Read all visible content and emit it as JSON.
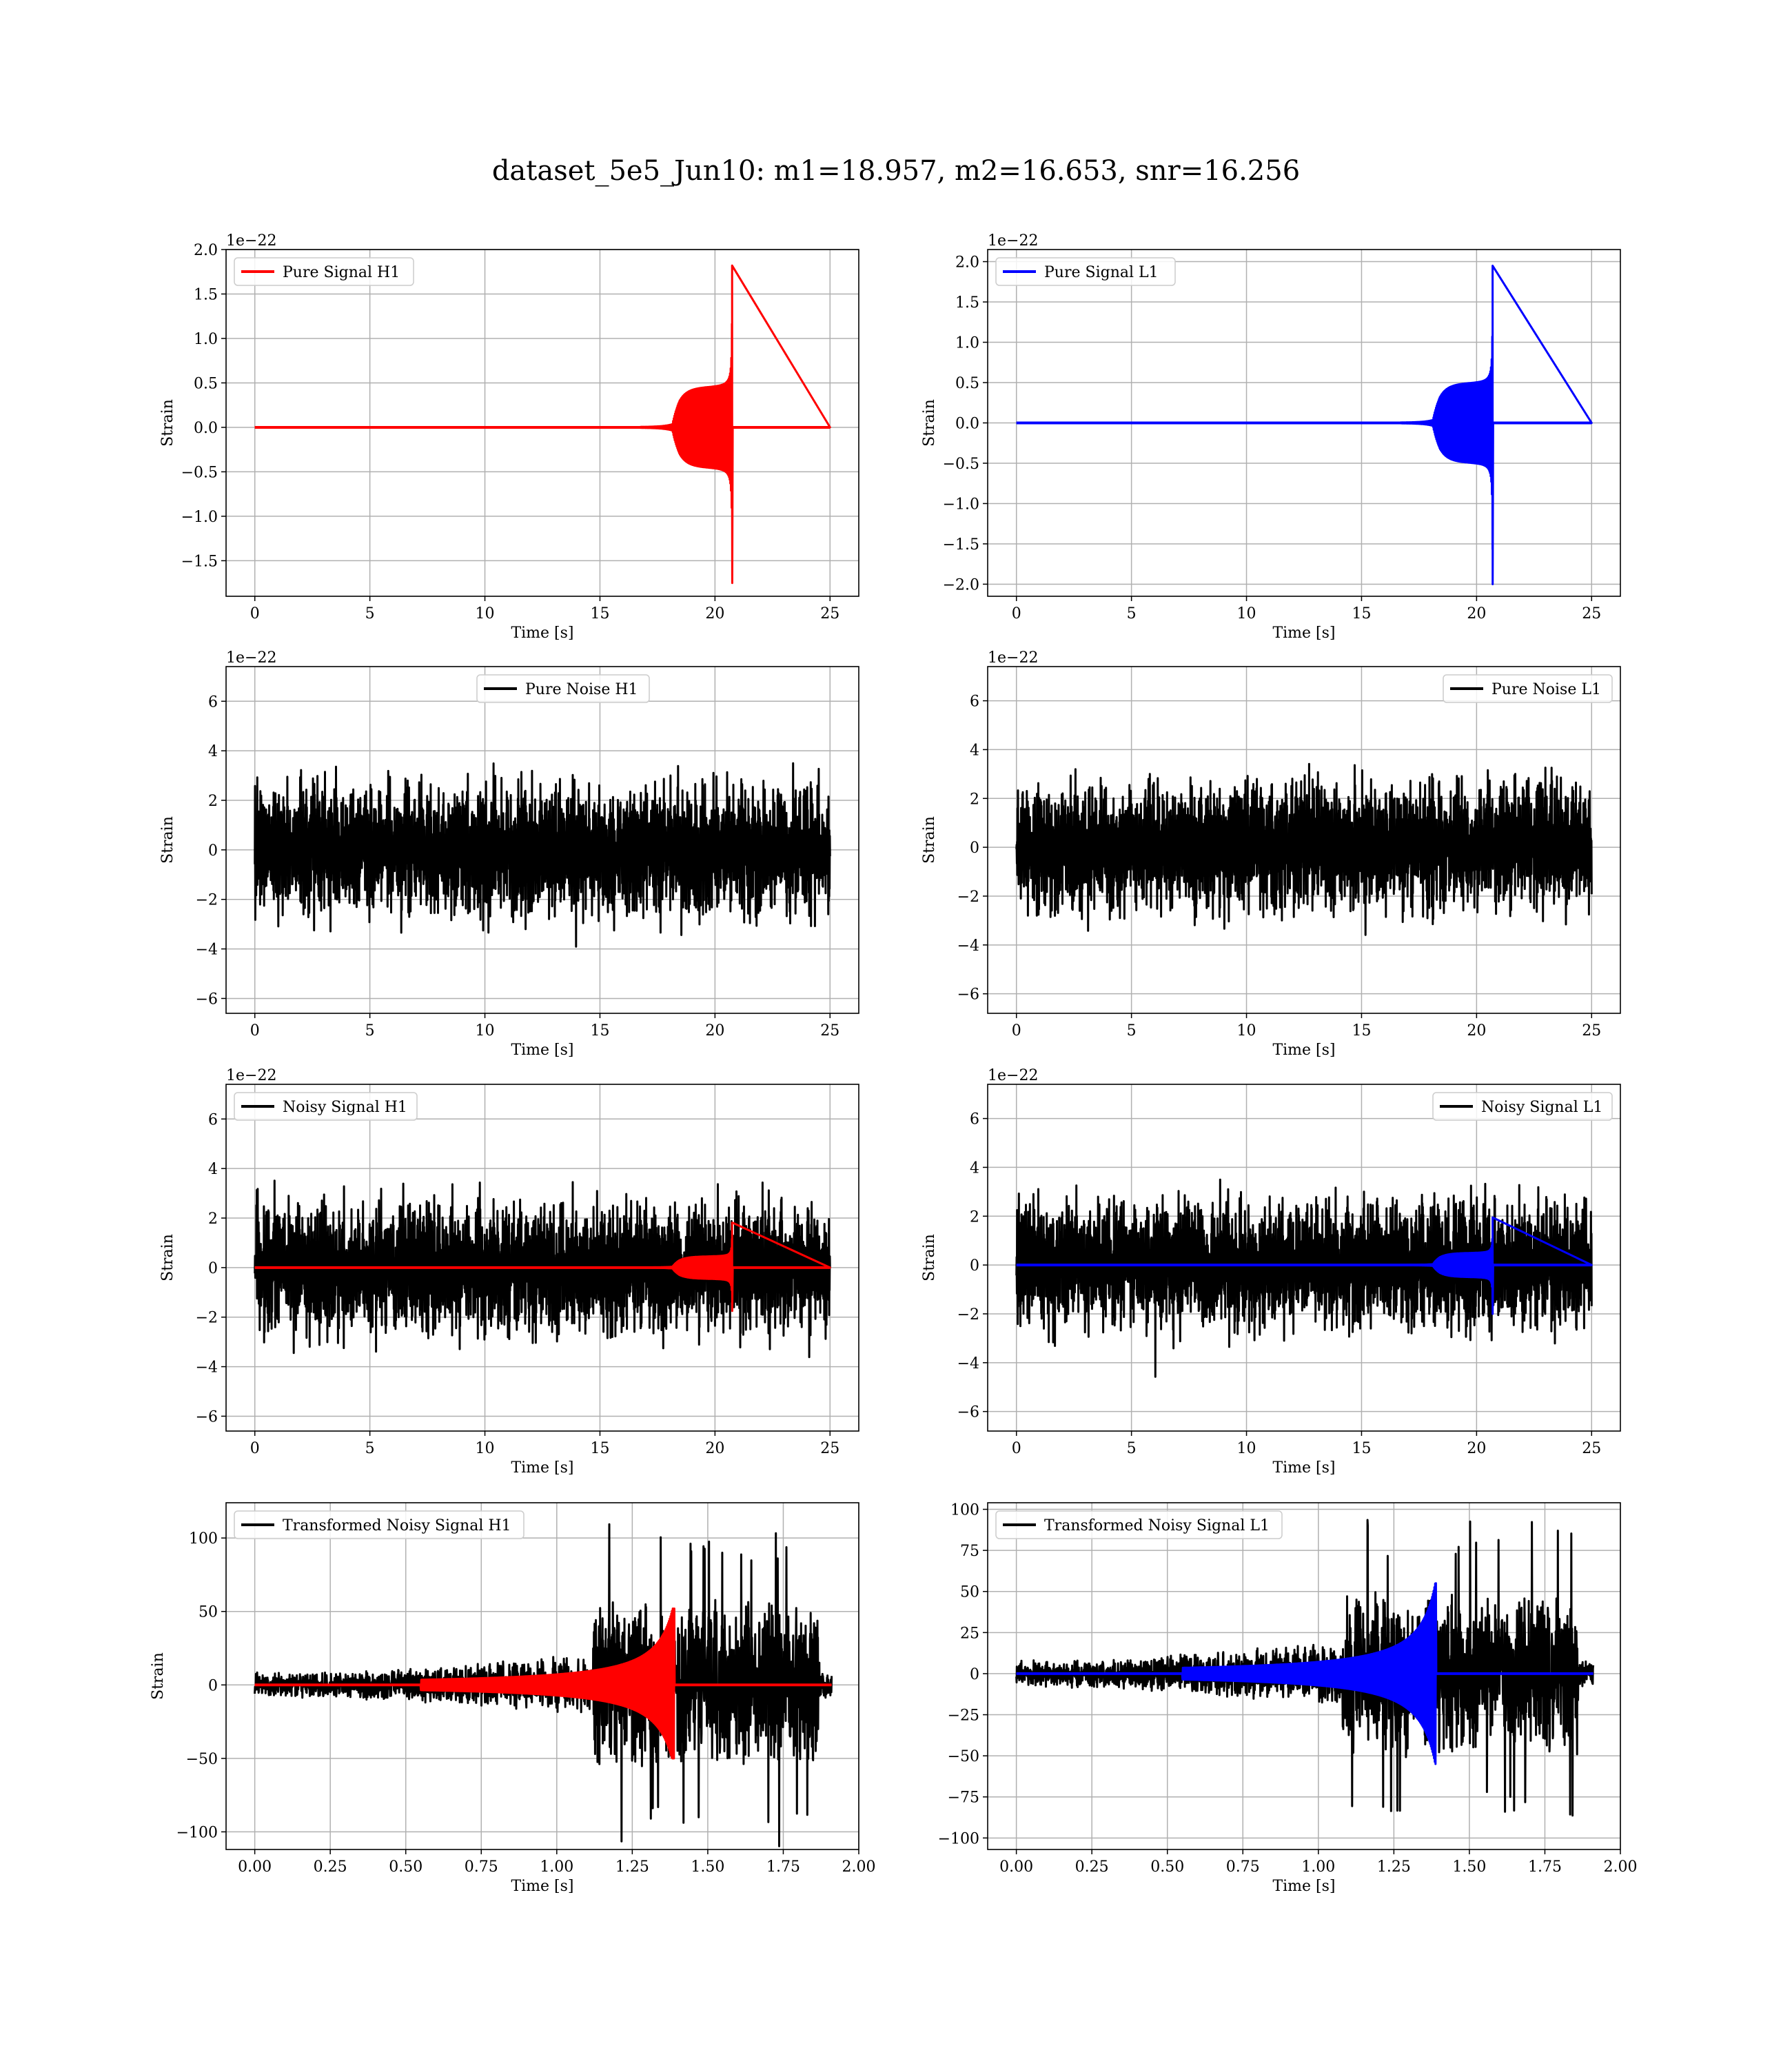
{
  "figure": {
    "title": "dataset_5e5_Jun10: m1=18.957, m2=16.653, snr=16.256"
  },
  "chart_data": [
    {
      "type": "line",
      "id": "p1",
      "xlabel": "Time [s]",
      "ylabel": "Strain",
      "offset_text": "1e−22",
      "xlim": [
        -1.25,
        26.25
      ],
      "ylim": [
        -1.9,
        2.0
      ],
      "xticks": [
        0,
        5,
        10,
        15,
        20,
        25
      ],
      "xtick_labels": [
        "0",
        "5",
        "10",
        "15",
        "20",
        "25"
      ],
      "yticks": [
        -1.5,
        -1.0,
        -0.5,
        0.0,
        0.5,
        1.0,
        1.5,
        2.0
      ],
      "ytick_labels": [
        "−1.5",
        "−1.0",
        "−0.5",
        "0.0",
        "0.5",
        "1.0",
        "1.5",
        "2.0"
      ],
      "legend_position": "upper-left",
      "grid": true,
      "series": [
        {
          "name": "Pure Signal H1",
          "color": "#ff0000",
          "kind": "chirp",
          "t_start": 0,
          "t_end": 25,
          "t_merger": 20.75,
          "envelope_peak": 1.82,
          "envelope_min_peak": -1.75,
          "envelope_shoulder": 0.38
        }
      ]
    },
    {
      "type": "line",
      "id": "p2",
      "xlabel": "Time [s]",
      "ylabel": "Strain",
      "offset_text": "1e−22",
      "xlim": [
        -1.25,
        26.25
      ],
      "ylim": [
        -2.15,
        2.15
      ],
      "xticks": [
        0,
        5,
        10,
        15,
        20,
        25
      ],
      "xtick_labels": [
        "0",
        "5",
        "10",
        "15",
        "20",
        "25"
      ],
      "yticks": [
        -2.0,
        -1.5,
        -1.0,
        -0.5,
        0.0,
        0.5,
        1.0,
        1.5,
        2.0
      ],
      "ytick_labels": [
        "−2.0",
        "−1.5",
        "−1.0",
        "−0.5",
        "0.0",
        "0.5",
        "1.0",
        "1.5",
        "2.0"
      ],
      "legend_position": "upper-left",
      "grid": true,
      "series": [
        {
          "name": "Pure Signal L1",
          "color": "#0000ff",
          "kind": "chirp",
          "t_start": 0,
          "t_end": 25,
          "t_merger": 20.7,
          "envelope_peak": 1.95,
          "envelope_min_peak": -2.0,
          "envelope_shoulder": 0.42
        }
      ]
    },
    {
      "type": "line",
      "id": "p3",
      "xlabel": "Time [s]",
      "ylabel": "Strain",
      "offset_text": "1e−22",
      "xlim": [
        -1.25,
        26.25
      ],
      "ylim": [
        -6.6,
        7.4
      ],
      "xticks": [
        0,
        5,
        10,
        15,
        20,
        25
      ],
      "xtick_labels": [
        "0",
        "5",
        "10",
        "15",
        "20",
        "25"
      ],
      "yticks": [
        -6,
        -4,
        -2,
        0,
        2,
        4,
        6
      ],
      "ytick_labels": [
        "−6",
        "−4",
        "−2",
        "0",
        "2",
        "4",
        "6"
      ],
      "legend_position": "upper-center",
      "grid": true,
      "series": [
        {
          "name": "Pure Noise H1",
          "color": "#000000",
          "kind": "noise",
          "t_start": 0,
          "t_end": 25,
          "amplitude": 6.8,
          "seed": 11
        }
      ]
    },
    {
      "type": "line",
      "id": "p4",
      "xlabel": "Time [s]",
      "ylabel": "Strain",
      "offset_text": "1e−22",
      "xlim": [
        -1.25,
        26.25
      ],
      "ylim": [
        -6.8,
        7.4
      ],
      "xticks": [
        0,
        5,
        10,
        15,
        20,
        25
      ],
      "xtick_labels": [
        "0",
        "5",
        "10",
        "15",
        "20",
        "25"
      ],
      "yticks": [
        -6,
        -4,
        -2,
        0,
        2,
        4,
        6
      ],
      "ytick_labels": [
        "−6",
        "−4",
        "−2",
        "0",
        "2",
        "4",
        "6"
      ],
      "legend_position": "upper-right",
      "grid": true,
      "series": [
        {
          "name": "Pure Noise L1",
          "color": "#000000",
          "kind": "noise",
          "t_start": 0,
          "t_end": 25,
          "amplitude": 6.9,
          "seed": 23
        }
      ]
    },
    {
      "type": "line",
      "id": "p5",
      "xlabel": "Time [s]",
      "ylabel": "Strain",
      "offset_text": "1e−22",
      "xlim": [
        -1.25,
        26.25
      ],
      "ylim": [
        -6.6,
        7.4
      ],
      "xticks": [
        0,
        5,
        10,
        15,
        20,
        25
      ],
      "xtick_labels": [
        "0",
        "5",
        "10",
        "15",
        "20",
        "25"
      ],
      "yticks": [
        -6,
        -4,
        -2,
        0,
        2,
        4,
        6
      ],
      "ytick_labels": [
        "−6",
        "−4",
        "−2",
        "0",
        "2",
        "4",
        "6"
      ],
      "legend_position": "upper-left",
      "grid": true,
      "series": [
        {
          "name": "Noisy Signal H1",
          "color": "#000000",
          "kind": "noise",
          "t_start": 0,
          "t_end": 25,
          "amplitude": 7.0,
          "seed": 11
        },
        {
          "color": "#ff0000",
          "kind": "chirp",
          "t_start": 0,
          "t_end": 25,
          "t_merger": 20.75,
          "envelope_peak": 1.82,
          "envelope_min_peak": -1.75,
          "envelope_shoulder": 0.38
        }
      ]
    },
    {
      "type": "line",
      "id": "p6",
      "xlabel": "Time [s]",
      "ylabel": "Strain",
      "offset_text": "1e−22",
      "xlim": [
        -1.25,
        26.25
      ],
      "ylim": [
        -6.8,
        7.4
      ],
      "xticks": [
        0,
        5,
        10,
        15,
        20,
        25
      ],
      "xtick_labels": [
        "0",
        "5",
        "10",
        "15",
        "20",
        "25"
      ],
      "yticks": [
        -6,
        -4,
        -2,
        0,
        2,
        4,
        6
      ],
      "ytick_labels": [
        "−6",
        "−4",
        "−2",
        "0",
        "2",
        "4",
        "6"
      ],
      "legend_position": "upper-right",
      "grid": true,
      "series": [
        {
          "name": "Noisy Signal L1",
          "color": "#000000",
          "kind": "noise",
          "t_start": 0,
          "t_end": 25,
          "amplitude": 7.0,
          "seed": 23
        },
        {
          "color": "#0000ff",
          "kind": "chirp",
          "t_start": 0,
          "t_end": 25,
          "t_merger": 20.7,
          "envelope_peak": 1.95,
          "envelope_min_peak": -2.0,
          "envelope_shoulder": 0.42
        }
      ]
    },
    {
      "type": "line",
      "id": "p7",
      "xlabel": "Time [s]",
      "ylabel": "Strain",
      "offset_text": "",
      "xlim": [
        -0.095,
        2.0
      ],
      "ylim": [
        -112,
        124
      ],
      "xticks": [
        0.0,
        0.25,
        0.5,
        0.75,
        1.0,
        1.25,
        1.5,
        1.75,
        2.0
      ],
      "xtick_labels": [
        "0.00",
        "0.25",
        "0.50",
        "0.75",
        "1.00",
        "1.25",
        "1.50",
        "1.75",
        "2.00"
      ],
      "yticks": [
        -100,
        -50,
        0,
        50,
        100
      ],
      "ytick_labels": [
        "−100",
        "−50",
        "0",
        "50",
        "100"
      ],
      "legend_position": "upper-left",
      "grid": true,
      "series": [
        {
          "name": "Transformed Noisy Signal H1",
          "color": "#000000",
          "kind": "whitened_noise",
          "t_start": 0,
          "t_end": 1.91,
          "seed": 31,
          "amp_early": 9,
          "amp_mid": 22,
          "amp_late": 110,
          "t_rise": 1.12,
          "t_drop": 1.87
        },
        {
          "color": "#ff0000",
          "kind": "whitened_chirp",
          "t_start": 0,
          "t_end": 1.91,
          "t_merger": 1.39,
          "peak": 52,
          "min_peak": -50
        }
      ]
    },
    {
      "type": "line",
      "id": "p8",
      "xlabel": "Time [s]",
      "ylabel": "",
      "offset_text": "",
      "xlim": [
        -0.095,
        2.0
      ],
      "ylim": [
        -107,
        104
      ],
      "xticks": [
        0.0,
        0.25,
        0.5,
        0.75,
        1.0,
        1.25,
        1.5,
        1.75,
        2.0
      ],
      "xtick_labels": [
        "0.00",
        "0.25",
        "0.50",
        "0.75",
        "1.00",
        "1.25",
        "1.50",
        "1.75",
        "2.00"
      ],
      "yticks": [
        -100,
        -75,
        -50,
        -25,
        0,
        25,
        50,
        75,
        100
      ],
      "ytick_labels": [
        "−100",
        "−75",
        "−50",
        "−25",
        "0",
        "25",
        "50",
        "75",
        "100"
      ],
      "legend_position": "upper-left",
      "grid": true,
      "series": [
        {
          "name": "Transformed Noisy Signal L1",
          "color": "#000000",
          "kind": "whitened_noise",
          "t_start": 0,
          "t_end": 1.91,
          "seed": 47,
          "amp_early": 9,
          "amp_mid": 20,
          "amp_late": 95,
          "t_rise": 1.08,
          "t_drop": 1.86
        },
        {
          "color": "#0000ff",
          "kind": "whitened_chirp",
          "t_start": 0,
          "t_end": 1.91,
          "t_merger": 1.39,
          "peak": 55,
          "min_peak": -55
        }
      ]
    }
  ]
}
